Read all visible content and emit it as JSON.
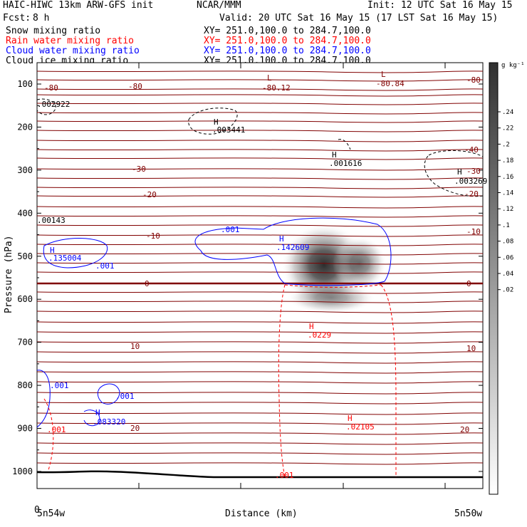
{
  "header": {
    "model": "HAIC-HIWC 13km ARW-GFS init",
    "org": "NCAR/MMM",
    "init": "Init: 12 UTC Sat 16 May 15",
    "fcst_label": "Fcst:",
    "fcst_value": "8 h",
    "valid": "Valid: 20 UTC Sat 16 May 15 (17 LST Sat 16 May 15)",
    "fields": [
      {
        "name": "Snow mixing ratio",
        "xy": "XY= 251.0,100.0 to 284.7,100.0",
        "color": "#000000"
      },
      {
        "name": "Rain water mixing ratio",
        "xy": "XY= 251.0,100.0 to 284.7,100.0",
        "color": "#ff0000"
      },
      {
        "name": "Cloud water mixing ratio",
        "xy": "XY= 251.0,100.0 to 284.7,100.0",
        "color": "#0000ff"
      },
      {
        "name": "Cloud ice mixing ratio",
        "xy": "XY= 251.0,100.0 to 284.7,100.0",
        "color": "#000000"
      }
    ]
  },
  "chart_data": {
    "type": "contour",
    "xlabel": "Distance (km)",
    "ylabel": "Pressure (hPa)",
    "y_ticks": [
      100,
      200,
      300,
      400,
      500,
      600,
      700,
      800,
      900,
      1000
    ],
    "x_ticks_labels": {
      "origin": "0",
      "left": "5n54w",
      "right": "5n50w"
    },
    "colorbar": {
      "unit": "g kg⁻¹",
      "ticks": [
        ".02",
        ".04",
        ".06",
        ".08",
        ".1",
        ".12",
        ".14",
        ".16",
        ".18",
        ".2",
        ".22",
        ".24"
      ]
    },
    "temperature_labels": [
      "-80",
      "-80",
      "-80",
      "-40",
      "-30",
      "-30",
      "-20",
      "-20",
      "-10",
      "-10",
      "0",
      "0",
      "10",
      "10",
      "20",
      "20"
    ],
    "extrema": [
      {
        "kind": "L",
        "value": "-80.12",
        "color": "#800000"
      },
      {
        "kind": "L",
        "value": "-80.84",
        "color": "#800000"
      },
      {
        "kind": "H",
        "value": ".003441",
        "color": "#000000"
      },
      {
        "kind": "H",
        "value": ".001616",
        "color": "#000000"
      },
      {
        "kind": "H",
        "value": ".003269",
        "color": "#000000"
      },
      {
        "kind": "H",
        "value": ".142609",
        "color": "#0000ff"
      },
      {
        "kind": "H",
        "value": ".135004",
        "color": "#0000ff"
      },
      {
        "kind": "H",
        "value": ".083320",
        "color": "#0000ff"
      },
      {
        "kind": "H",
        "value": ".0229",
        "color": "#ff0000"
      },
      {
        "kind": "H",
        "value": ".02105",
        "color": "#ff0000"
      }
    ],
    "contour_labels": [
      {
        "text": ".002922",
        "color": "#000000"
      },
      {
        "text": ".00143",
        "color": "#000000"
      },
      {
        "text": ".001",
        "color": "#0000ff"
      },
      {
        "text": ".001",
        "color": "#0000ff"
      },
      {
        "text": ".001",
        "color": "#0000ff"
      },
      {
        "text": ".001",
        "color": "#0000ff"
      },
      {
        "text": ".001",
        "color": "#ff0000"
      },
      {
        "text": ".001",
        "color": "#ff0000"
      }
    ]
  }
}
